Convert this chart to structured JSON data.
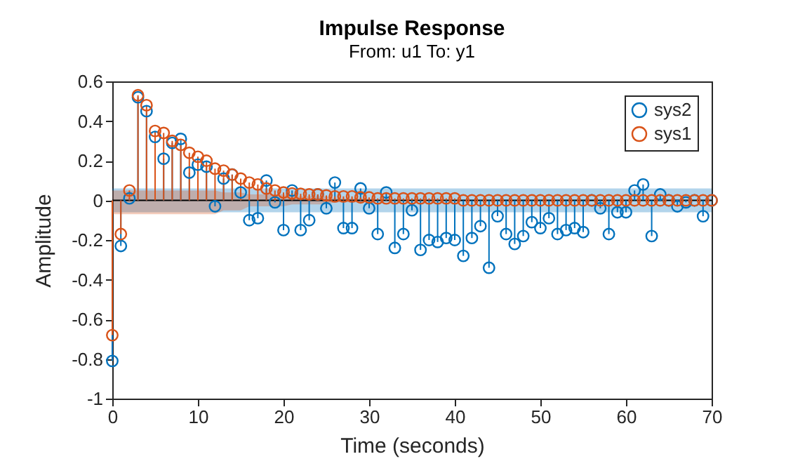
{
  "chart_data": {
    "type": "lollipop",
    "title": "Impulse Response",
    "subtitle": "From: u1  To: y1",
    "xlabel": "Time (seconds)",
    "ylabel": "Amplitude",
    "x": [
      0,
      1,
      2,
      3,
      4,
      5,
      6,
      7,
      8,
      9,
      10,
      11,
      12,
      13,
      14,
      15,
      16,
      17,
      18,
      19,
      20,
      21,
      22,
      23,
      24,
      25,
      26,
      27,
      28,
      29,
      30,
      31,
      32,
      33,
      34,
      35,
      36,
      37,
      38,
      39,
      40,
      41,
      42,
      43,
      44,
      45,
      46,
      47,
      48,
      49,
      50,
      51,
      52,
      53,
      54,
      55,
      56,
      57,
      58,
      59,
      60,
      61,
      62,
      63,
      64,
      65,
      66,
      67,
      68,
      69,
      70
    ],
    "xlim": [
      0,
      70
    ],
    "xticks": [
      0,
      10,
      20,
      30,
      40,
      50,
      60,
      70
    ],
    "ylim": [
      -1,
      0.6
    ],
    "yticks": [
      -1,
      -0.8,
      -0.6,
      -0.4,
      -0.2,
      0,
      0.2,
      0.4,
      0.6
    ],
    "legend": "top right",
    "marker": "circle",
    "series": [
      {
        "name": "sys2",
        "color": "#0072bd",
        "values": [
          -0.81,
          -0.23,
          0.01,
          0.52,
          0.45,
          0.32,
          0.21,
          0.29,
          0.31,
          0.14,
          0.18,
          0.17,
          -0.03,
          0.11,
          0.13,
          0.04,
          -0.1,
          -0.09,
          0.1,
          -0.01,
          -0.15,
          0.05,
          -0.15,
          -0.1,
          0.03,
          -0.04,
          0.09,
          -0.14,
          -0.14,
          0.06,
          -0.04,
          -0.17,
          0.04,
          -0.24,
          -0.17,
          -0.05,
          -0.25,
          -0.2,
          -0.21,
          -0.19,
          -0.2,
          -0.28,
          -0.19,
          -0.13,
          -0.34,
          -0.08,
          -0.17,
          -0.22,
          -0.18,
          -0.11,
          -0.14,
          -0.09,
          -0.17,
          -0.15,
          -0.14,
          -0.16,
          0,
          -0.04,
          -0.17,
          -0.06,
          -0.06,
          0.05,
          0.08,
          -0.18,
          0.03,
          0,
          -0.03,
          -0.01,
          0,
          -0.08,
          0
        ],
        "upper": [
          0.06,
          0.06,
          0.06,
          0.06,
          0.06,
          0.06,
          0.06,
          0.06,
          0.06,
          0.06,
          0.06,
          0.06,
          0.06,
          0.06,
          0.06,
          0.06,
          0.06,
          0.06,
          0.06,
          0.06,
          0.06,
          0.06,
          0.06,
          0.06,
          0.06,
          0.06,
          0.06,
          0.06,
          0.06,
          0.06,
          0.06,
          0.06,
          0.06,
          0.06,
          0.06,
          0.06,
          0.06,
          0.06,
          0.06,
          0.06,
          0.06,
          0.06,
          0.06,
          0.06,
          0.06,
          0.06,
          0.06,
          0.06,
          0.06,
          0.06,
          0.06,
          0.06,
          0.06,
          0.06,
          0.06,
          0.06,
          0.06,
          0.06,
          0.06,
          0.06,
          0.06,
          0.06,
          0.06,
          0.06,
          0.06,
          0.06,
          0.06,
          0.06,
          0.06,
          0.06,
          0.06
        ],
        "lower": [
          -0.06,
          -0.06,
          -0.06,
          -0.06,
          -0.06,
          -0.06,
          -0.06,
          -0.06,
          -0.06,
          -0.06,
          -0.06,
          -0.06,
          -0.06,
          -0.06,
          -0.06,
          -0.06,
          -0.06,
          -0.06,
          -0.06,
          -0.06,
          -0.06,
          -0.06,
          -0.06,
          -0.06,
          -0.06,
          -0.06,
          -0.06,
          -0.06,
          -0.06,
          -0.06,
          -0.06,
          -0.06,
          -0.06,
          -0.06,
          -0.06,
          -0.06,
          -0.06,
          -0.06,
          -0.06,
          -0.06,
          -0.06,
          -0.06,
          -0.06,
          -0.06,
          -0.06,
          -0.06,
          -0.06,
          -0.06,
          -0.06,
          -0.06,
          -0.06,
          -0.06,
          -0.06,
          -0.06,
          -0.06,
          -0.06,
          -0.06,
          -0.06,
          -0.06,
          -0.06,
          -0.06,
          -0.06,
          -0.06,
          -0.06,
          -0.06,
          -0.06,
          -0.06,
          -0.06,
          -0.06,
          -0.06,
          -0.06
        ]
      },
      {
        "name": "sys1",
        "color": "#d95319",
        "values": [
          -0.68,
          -0.17,
          0.05,
          0.53,
          0.48,
          0.35,
          0.34,
          0.3,
          0.28,
          0.24,
          0.22,
          0.2,
          0.16,
          0.15,
          0.13,
          0.11,
          0.09,
          0.08,
          0.06,
          0.05,
          0.04,
          0.035,
          0.033,
          0.03,
          0.03,
          0.025,
          0.02,
          0.02,
          0.02,
          0.015,
          0.015,
          0.01,
          0.01,
          0.01,
          0.01,
          0.01,
          0.01,
          0.01,
          0.01,
          0.01,
          0.01,
          0,
          0,
          0,
          0,
          0,
          0,
          0,
          0,
          0,
          0,
          0,
          0,
          0,
          0,
          0,
          0,
          0,
          0,
          0,
          0,
          0,
          0,
          0,
          0,
          0,
          0,
          0,
          0,
          0,
          0
        ],
        "upper": [
          0.05,
          0.05,
          0.05,
          0.05,
          0.05,
          0.05,
          0.05,
          0.05,
          0.05,
          0.05,
          0.05,
          0.05,
          0.05,
          0.04,
          0.04,
          0.04,
          0.03,
          0.03,
          0.03,
          0.03,
          0.03,
          0.02,
          0.02,
          0.02,
          0.02,
          0.02,
          0.01,
          0.01,
          0.01,
          0.01,
          0.01,
          0,
          0,
          0,
          0,
          0,
          0,
          0,
          0,
          0,
          0,
          0,
          0,
          0,
          0,
          0,
          0,
          0,
          0,
          0,
          0,
          0,
          0,
          0,
          0,
          0,
          0,
          0,
          0,
          0,
          0,
          0,
          0,
          0,
          0,
          0,
          0,
          0,
          0,
          0,
          0
        ],
        "lower": [
          -0.07,
          -0.07,
          -0.07,
          -0.07,
          -0.07,
          -0.07,
          -0.07,
          -0.07,
          -0.07,
          -0.07,
          -0.07,
          -0.07,
          -0.07,
          -0.05,
          -0.05,
          -0.05,
          -0.03,
          -0.03,
          -0.03,
          -0.03,
          -0.03,
          -0.02,
          -0.02,
          -0.02,
          -0.02,
          -0.02,
          -0.01,
          -0.01,
          -0.01,
          -0.01,
          -0.01,
          0,
          0,
          0,
          0,
          0,
          0,
          0,
          0,
          0,
          0,
          0,
          0,
          0,
          0,
          0,
          0,
          0,
          0,
          0,
          0,
          0,
          0,
          0,
          0,
          0,
          0,
          0,
          0,
          0,
          0,
          0,
          0,
          0,
          0,
          0,
          0,
          0,
          0,
          0,
          0
        ]
      }
    ]
  }
}
